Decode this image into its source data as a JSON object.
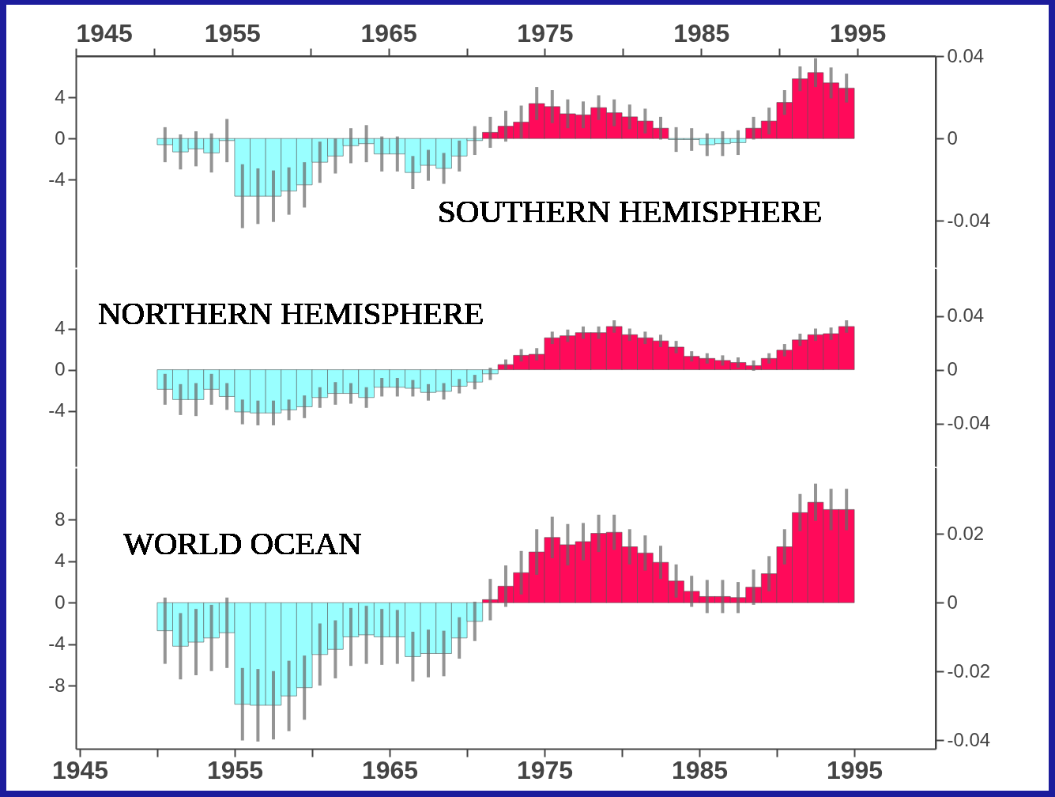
{
  "chart_data": [
    {
      "type": "bar",
      "title": "SOUTHERN HEMISPHERE",
      "tick_labels": "y",
      "x": [
        1950.5,
        1951.5,
        1952.5,
        1953.5,
        1954.5,
        1955.5,
        1956.5,
        1957.5,
        1958.5,
        1959.5,
        1960.5,
        1961.5,
        1962.5,
        1963.5,
        1964.5,
        1965.5,
        1966.5,
        1967.5,
        1968.5,
        1969.5,
        1970.5,
        1971.5,
        1972.5,
        1973.5,
        1974.5,
        1975.5,
        1976.5,
        1977.5,
        1978.5,
        1979.5,
        1980.5,
        1981.5,
        1982.5,
        1983.5,
        1984.5,
        1985.5,
        1986.5,
        1987.5,
        1988.5,
        1989.5,
        1990.5,
        1991.5,
        1992.5,
        1993.5,
        1994.5
      ],
      "values": [
        -0.6,
        -1.3,
        -1.0,
        -1.4,
        -0.2,
        -5.6,
        -5.6,
        -5.6,
        -5.1,
        -4.5,
        -2.3,
        -1.7,
        -0.7,
        -0.5,
        -1.5,
        -1.5,
        -3.3,
        -2.6,
        -2.9,
        -1.7,
        -0.2,
        0.6,
        1.2,
        1.6,
        3.4,
        3.1,
        2.4,
        2.3,
        3.0,
        2.5,
        2.1,
        1.7,
        1.0,
        -0.1,
        -0.1,
        -0.6,
        -0.5,
        -0.4,
        1.0,
        1.7,
        3.5,
        5.8,
        6.4,
        5.4,
        4.9
      ],
      "errors": [
        1.7,
        1.7,
        1.7,
        1.9,
        2.1,
        3.1,
        2.7,
        2.5,
        2.3,
        2.2,
        2.0,
        1.7,
        1.7,
        1.8,
        1.7,
        1.7,
        1.6,
        1.5,
        1.5,
        1.5,
        1.4,
        1.5,
        1.5,
        1.6,
        1.6,
        1.6,
        1.4,
        1.3,
        1.2,
        1.3,
        1.2,
        1.2,
        1.1,
        1.2,
        1.1,
        1.1,
        1.2,
        1.2,
        1.1,
        1.3,
        1.2,
        1.2,
        1.4,
        1.5,
        1.4
      ],
      "colors": [
        "#99ffff",
        "#99ffff",
        "#99ffff",
        "#99ffff",
        "#99ffff",
        "#99ffff",
        "#99ffff",
        "#99ffff",
        "#99ffff",
        "#99ffff",
        "#99ffff",
        "#99ffff",
        "#99ffff",
        "#99ffff",
        "#99ffff",
        "#99ffff",
        "#99ffff",
        "#99ffff",
        "#99ffff",
        "#99ffff",
        "#99ffff",
        "#ff0a5a",
        "#ff0a5a",
        "#ff0a5a",
        "#ff0a5a",
        "#ff0a5a",
        "#ff0a5a",
        "#ff0a5a",
        "#ff0a5a",
        "#ff0a5a",
        "#ff0a5a",
        "#ff0a5a",
        "#ff0a5a",
        "#99ffff",
        "#99ffff",
        "#99ffff",
        "#99ffff",
        "#99ffff",
        "#ff0a5a",
        "#ff0a5a",
        "#ff0a5a",
        "#ff0a5a",
        "#ff0a5a",
        "#ff0a5a",
        "#ff0a5a"
      ],
      "xlim": [
        1945,
        2000
      ],
      "ylim": [
        -12.5,
        8
      ],
      "yticks": [
        -4,
        0,
        4
      ],
      "y2lim": [
        -0.0625,
        0.04
      ],
      "y2ticks": [
        -0.04,
        0,
        0.04
      ],
      "x2lim": [
        1945,
        2000
      ],
      "x2ticks": [
        1945,
        {
          "value": 1950,
          "label": null
        },
        1955,
        {
          "value": 1960,
          "label": null
        },
        1965,
        {
          "value": 1970,
          "label": null
        },
        1975,
        {
          "value": 1980,
          "label": null
        },
        1985,
        {
          "value": 1990,
          "label": null
        },
        1995
      ]
    },
    {
      "type": "bar",
      "title": "NORTHERN HEMISPHERE",
      "tick_labels": "y",
      "x": [
        1950.5,
        1951.5,
        1952.5,
        1953.5,
        1954.5,
        1955.5,
        1956.5,
        1957.5,
        1958.5,
        1959.5,
        1960.5,
        1961.5,
        1962.5,
        1963.5,
        1964.5,
        1965.5,
        1966.5,
        1967.5,
        1968.5,
        1969.5,
        1970.5,
        1971.5,
        1972.5,
        1973.5,
        1974.5,
        1975.5,
        1976.5,
        1977.5,
        1978.5,
        1979.5,
        1980.5,
        1981.5,
        1982.5,
        1983.5,
        1984.5,
        1985.5,
        1986.5,
        1987.5,
        1988.5,
        1989.5,
        1990.5,
        1991.5,
        1992.5,
        1993.5,
        1994.5
      ],
      "values": [
        -1.9,
        -2.9,
        -2.9,
        -1.9,
        -2.6,
        -4.1,
        -4.2,
        -4.2,
        -3.9,
        -3.6,
        -2.7,
        -2.3,
        -2.3,
        -2.7,
        -1.7,
        -1.7,
        -1.8,
        -2.2,
        -2.1,
        -1.6,
        -1.2,
        -0.4,
        0.5,
        1.4,
        1.5,
        3.1,
        3.3,
        3.6,
        3.6,
        4.2,
        3.4,
        3.1,
        2.8,
        2.2,
        1.3,
        1.1,
        0.9,
        0.7,
        0.4,
        1.1,
        1.9,
        2.9,
        3.4,
        3.5,
        4.2
      ],
      "errors": [
        1.5,
        1.5,
        1.6,
        1.5,
        1.3,
        1.2,
        1.2,
        1.2,
        1.0,
        1.1,
        1.0,
        1.1,
        1.0,
        1.0,
        0.9,
        0.9,
        0.8,
        0.8,
        0.8,
        0.7,
        0.7,
        0.6,
        0.5,
        0.6,
        0.6,
        0.6,
        0.6,
        0.6,
        0.6,
        0.6,
        0.6,
        0.6,
        0.6,
        0.6,
        0.5,
        0.5,
        0.5,
        0.5,
        0.5,
        0.5,
        0.6,
        0.6,
        0.6,
        0.6,
        0.6
      ],
      "colors": [
        "#99ffff",
        "#99ffff",
        "#99ffff",
        "#99ffff",
        "#99ffff",
        "#99ffff",
        "#99ffff",
        "#99ffff",
        "#99ffff",
        "#99ffff",
        "#99ffff",
        "#99ffff",
        "#99ffff",
        "#99ffff",
        "#99ffff",
        "#99ffff",
        "#99ffff",
        "#99ffff",
        "#99ffff",
        "#99ffff",
        "#99ffff",
        "#99ffff",
        "#ff0a5a",
        "#ff0a5a",
        "#ff0a5a",
        "#ff0a5a",
        "#ff0a5a",
        "#ff0a5a",
        "#ff0a5a",
        "#ff0a5a",
        "#ff0a5a",
        "#ff0a5a",
        "#ff0a5a",
        "#ff0a5a",
        "#ff0a5a",
        "#ff0a5a",
        "#ff0a5a",
        "#ff0a5a",
        "#ff0a5a",
        "#ff0a5a",
        "#ff0a5a",
        "#ff0a5a",
        "#ff0a5a",
        "#ff0a5a",
        "#ff0a5a"
      ],
      "xlim": [
        1945,
        2000
      ],
      "ylim": [
        -9.4,
        9.8
      ],
      "yticks": [
        -4,
        0,
        4
      ],
      "y2lim": [
        -0.0719,
        0.075
      ],
      "y2ticks": [
        -0.04,
        0,
        0.04
      ]
    },
    {
      "type": "bar",
      "title": "WORLD OCEAN",
      "x": [
        1950.5,
        1951.5,
        1952.5,
        1953.5,
        1954.5,
        1955.5,
        1956.5,
        1957.5,
        1958.5,
        1959.5,
        1960.5,
        1961.5,
        1962.5,
        1963.5,
        1964.5,
        1965.5,
        1966.5,
        1967.5,
        1968.5,
        1969.5,
        1970.5,
        1971.5,
        1972.5,
        1973.5,
        1974.5,
        1975.5,
        1976.5,
        1977.5,
        1978.5,
        1979.5,
        1980.5,
        1981.5,
        1982.5,
        1983.5,
        1984.5,
        1985.5,
        1986.5,
        1987.5,
        1988.5,
        1989.5,
        1990.5,
        1991.5,
        1992.5,
        1993.5,
        1994.5
      ],
      "values": [
        -2.7,
        -4.2,
        -3.8,
        -3.4,
        -2.9,
        -9.8,
        -9.9,
        -9.9,
        -9.0,
        -8.2,
        -5.0,
        -4.5,
        -3.3,
        -3.1,
        -3.3,
        -3.3,
        -5.2,
        -4.9,
        -4.9,
        -3.4,
        -1.8,
        0.3,
        1.6,
        2.9,
        4.9,
        6.3,
        5.6,
        5.9,
        6.7,
        6.8,
        5.4,
        4.8,
        3.9,
        2.1,
        1.1,
        0.6,
        0.6,
        0.5,
        1.5,
        2.8,
        5.4,
        8.7,
        9.7,
        9.0,
        9.0
      ],
      "errors": [
        3.2,
        3.2,
        3.2,
        3.2,
        3.4,
        3.5,
        3.5,
        3.3,
        3.4,
        3.1,
        3.0,
        2.8,
        2.8,
        2.8,
        2.7,
        2.6,
        2.4,
        2.3,
        2.2,
        2.0,
        1.9,
        2.0,
        2.0,
        2.1,
        2.2,
        2.0,
        2.0,
        1.8,
        1.8,
        1.7,
        1.7,
        1.7,
        1.6,
        1.6,
        1.5,
        1.6,
        1.6,
        1.5,
        1.7,
        1.7,
        1.7,
        1.8,
        1.8,
        2.0,
        2.0
      ],
      "colors": [
        "#99ffff",
        "#99ffff",
        "#99ffff",
        "#99ffff",
        "#99ffff",
        "#99ffff",
        "#99ffff",
        "#99ffff",
        "#99ffff",
        "#99ffff",
        "#99ffff",
        "#99ffff",
        "#99ffff",
        "#99ffff",
        "#99ffff",
        "#99ffff",
        "#99ffff",
        "#99ffff",
        "#99ffff",
        "#99ffff",
        "#99ffff",
        "#ff0a5a",
        "#ff0a5a",
        "#ff0a5a",
        "#ff0a5a",
        "#ff0a5a",
        "#ff0a5a",
        "#ff0a5a",
        "#ff0a5a",
        "#ff0a5a",
        "#ff0a5a",
        "#ff0a5a",
        "#ff0a5a",
        "#ff0a5a",
        "#ff0a5a",
        "#ff0a5a",
        "#ff0a5a",
        "#ff0a5a",
        "#ff0a5a",
        "#ff0a5a",
        "#ff0a5a",
        "#ff0a5a",
        "#ff0a5a",
        "#ff0a5a",
        "#ff0a5a"
      ],
      "xlim": [
        1945,
        2000
      ],
      "ylim": [
        -14.1,
        13
      ],
      "yticks": [
        -8,
        -4,
        0,
        4,
        8
      ],
      "y2lim": [
        -0.0425,
        0.0391
      ],
      "y2ticks": [
        -0.04,
        -0.02,
        0,
        0.02
      ],
      "xticks": [
        1945,
        {
          "value": 1950,
          "label": null
        },
        1955,
        {
          "value": 1960,
          "label": null
        },
        1965,
        {
          "value": 1970,
          "label": null
        },
        1975,
        {
          "value": 1980,
          "label": null
        },
        1985,
        {
          "value": 1990,
          "label": null
        },
        1995
      ]
    }
  ]
}
